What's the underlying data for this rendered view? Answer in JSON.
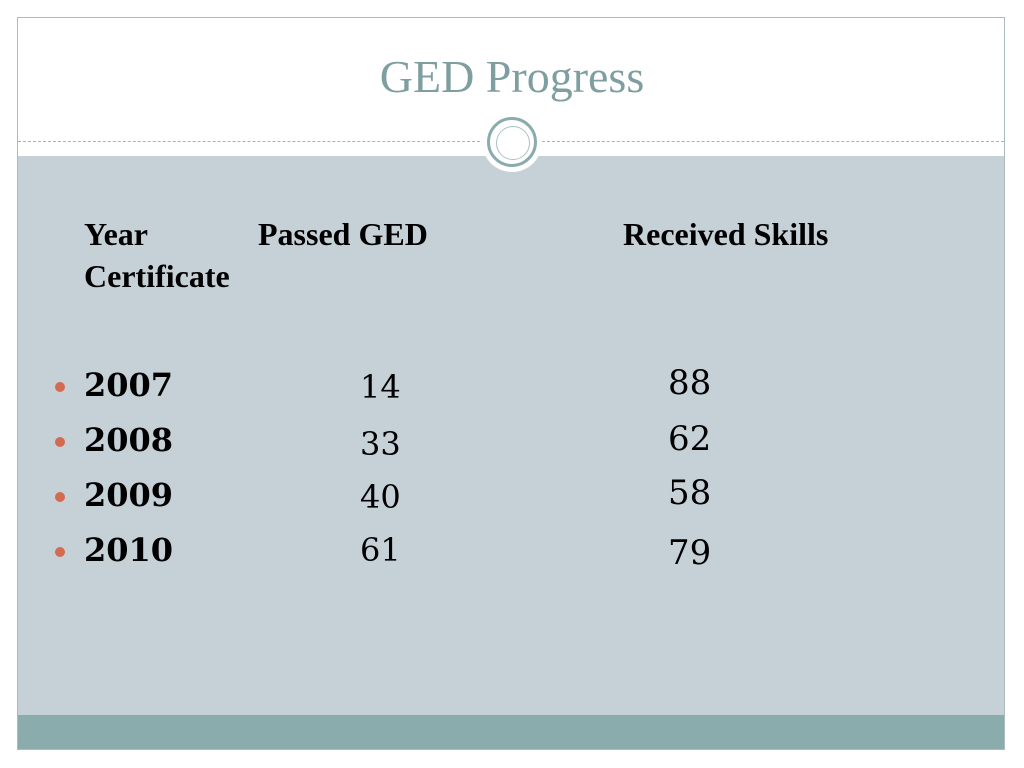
{
  "slide": {
    "title": "GED Progress",
    "headers": {
      "year": "Year",
      "passed": "Passed GED",
      "skills": "Received Skills",
      "certificate": "Certificate"
    },
    "rows": [
      {
        "year": "2007",
        "passed": "14",
        "skills": "88"
      },
      {
        "year": "2008",
        "passed": "33",
        "skills": "62"
      },
      {
        "year": "2009",
        "passed": "40",
        "skills": "58"
      },
      {
        "year": "2010",
        "passed": "61",
        "skills": "79"
      }
    ]
  },
  "colors": {
    "title": "#7f9ea0",
    "body_panel": "#c6d1d7",
    "footer_bar": "#8bacad",
    "bullet": "#d46a4f"
  }
}
